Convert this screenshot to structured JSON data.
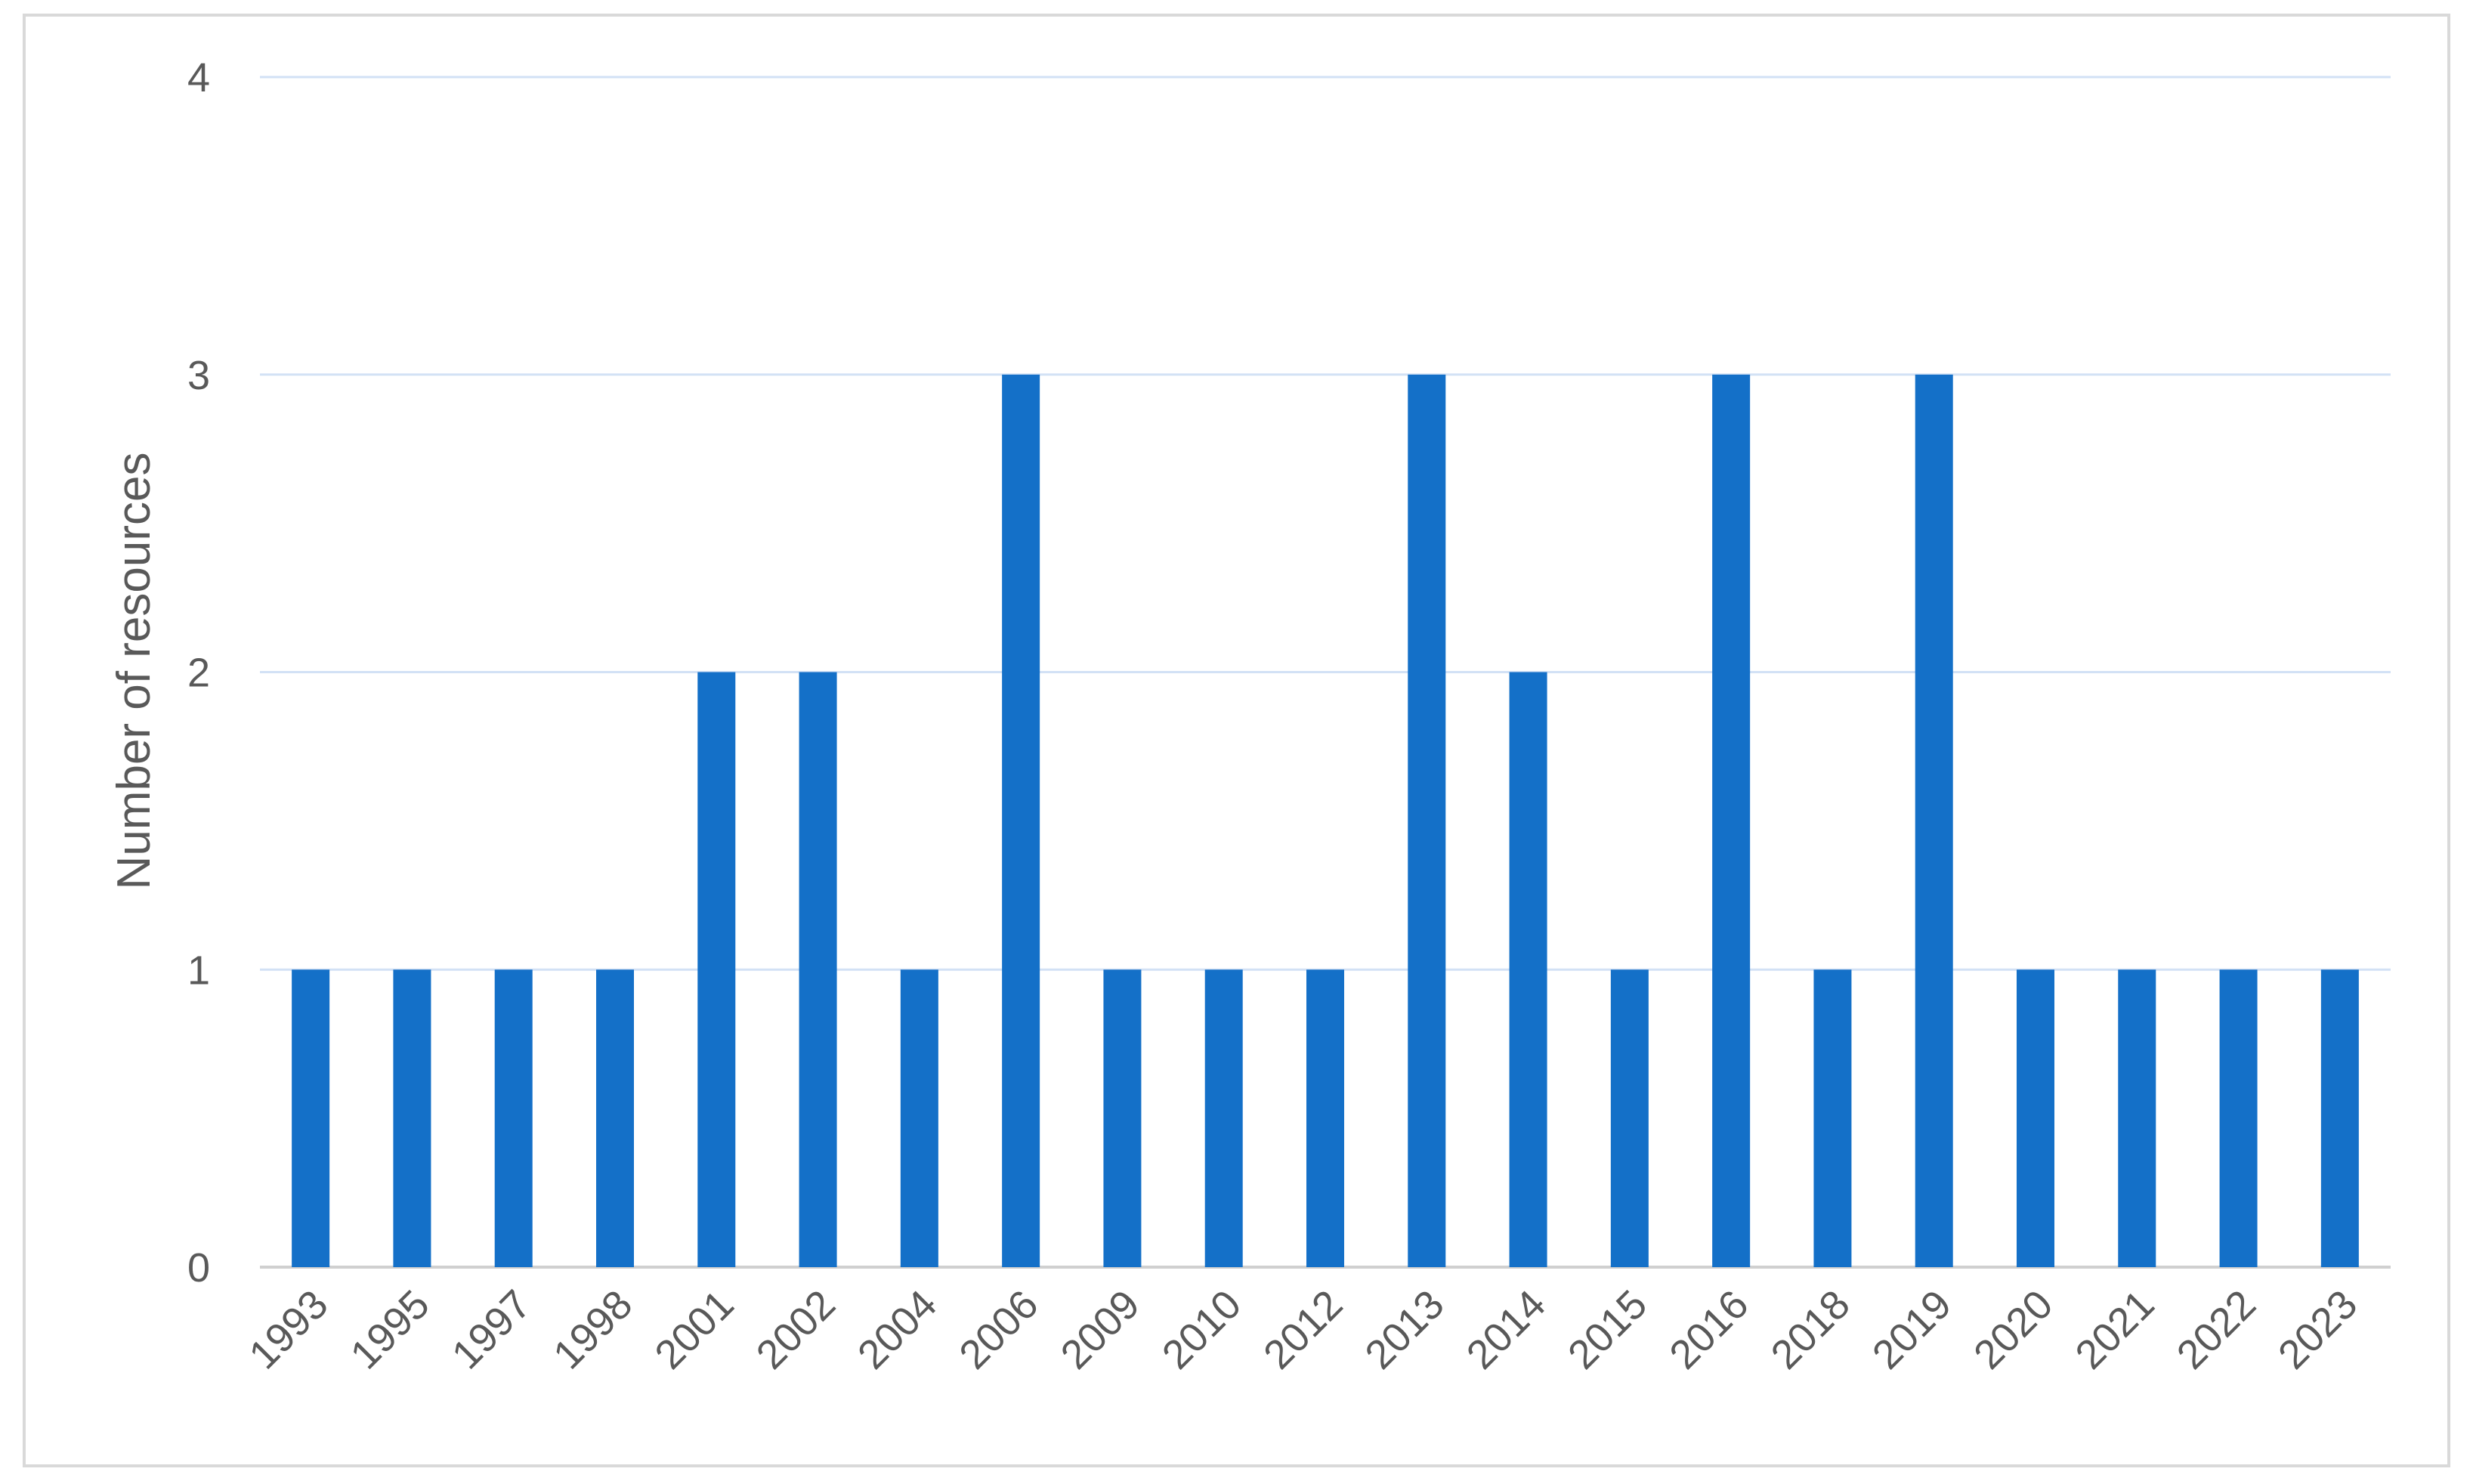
{
  "chart_data": {
    "type": "bar",
    "title": "",
    "xlabel": "",
    "ylabel": "Number of resources",
    "categories": [
      "1993",
      "1995",
      "1997",
      "1998",
      "2001",
      "2002",
      "2004",
      "2006",
      "2009",
      "2010",
      "2012",
      "2013",
      "2014",
      "2015",
      "2016",
      "2018",
      "2019",
      "2020",
      "2021",
      "2022",
      "2023"
    ],
    "values": [
      1,
      1,
      1,
      1,
      2,
      2,
      1,
      3,
      1,
      1,
      1,
      3,
      2,
      1,
      3,
      1,
      3,
      1,
      1,
      1,
      1
    ],
    "ylim": [
      0,
      4
    ],
    "yticks": [
      "0",
      "1",
      "2",
      "3",
      "4"
    ],
    "grid": true,
    "legend": "none",
    "colors": {
      "bar": "#1470c8",
      "grid": "#d2e1f5",
      "axis": "#d0d0d0",
      "text": "#595959",
      "frame": "#d9d9d9"
    }
  }
}
